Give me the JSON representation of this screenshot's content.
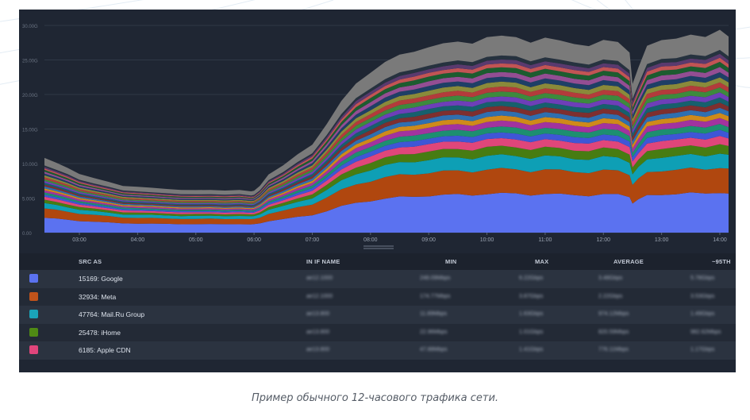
{
  "caption": "Пример обычного 12-часового трафика сети.",
  "chart_data": {
    "type": "area",
    "stacked": true,
    "x_ticks": [
      "03:00",
      "04:00",
      "05:00",
      "06:00",
      "07:00",
      "08:00",
      "09:00",
      "10:00",
      "11:00",
      "12:00",
      "13:00",
      "14:00"
    ],
    "y_ticks": [
      "0.00",
      "5.00G",
      "10.00G",
      "15.00G",
      "20.00G",
      "25.00G",
      "30.00G"
    ],
    "ylim": [
      0,
      30
    ],
    "y_unit": "Gbps",
    "x_start_hour": 2.4,
    "x": [
      2.4,
      2.6,
      2.8,
      3.0,
      3.25,
      3.5,
      3.75,
      4.0,
      4.25,
      4.5,
      4.75,
      5.0,
      5.25,
      5.5,
      5.75,
      5.95,
      6.0,
      6.1,
      6.25,
      6.5,
      6.75,
      7.0,
      7.25,
      7.5,
      7.75,
      8.0,
      8.25,
      8.5,
      8.75,
      9.0,
      9.25,
      9.5,
      9.75,
      10.0,
      10.25,
      10.5,
      10.75,
      11.0,
      11.25,
      11.5,
      11.75,
      12.0,
      12.25,
      12.45,
      12.5,
      12.6,
      12.75,
      13.0,
      13.25,
      13.5,
      13.75,
      14.0,
      14.15
    ],
    "total": [
      10.7,
      10.0,
      9.4,
      8.5,
      7.8,
      7.3,
      6.8,
      6.6,
      6.4,
      6.3,
      6.2,
      6.1,
      6.1,
      6.1,
      6.2,
      5.9,
      6.0,
      6.8,
      8.4,
      9.6,
      11.3,
      12.8,
      15.6,
      18.8,
      21.6,
      23.2,
      24.4,
      25.5,
      26.3,
      26.8,
      27.0,
      27.5,
      27.5,
      28.1,
      28.1,
      28.3,
      27.6,
      27.9,
      27.5,
      27.4,
      27.0,
      27.5,
      27.4,
      26.2,
      21.4,
      23.5,
      27.0,
      28.0,
      27.8,
      28.3,
      28.4,
      29.4,
      28.0
    ],
    "series": [
      {
        "name": "15169: Google",
        "color": "#5b72f0",
        "fraction": 0.2
      },
      {
        "name": "32934: Meta",
        "color": "#b0470f",
        "fraction": 0.125
      },
      {
        "name": "47764: Mail.Ru Group",
        "color": "#0e9fb5",
        "fraction": 0.07
      },
      {
        "name": "25478: iHome",
        "color": "#477c12",
        "fraction": 0.045
      },
      {
        "name": "6185: Apple CDN",
        "color": "#e0467a",
        "fraction": 0.04
      },
      {
        "color": "#3f56d6",
        "fraction": 0.03
      },
      {
        "color": "#1d8f70",
        "fraction": 0.03
      },
      {
        "color": "#a1339f",
        "fraction": 0.03
      },
      {
        "color": "#cf8a1a",
        "fraction": 0.025
      },
      {
        "color": "#2f6fb0",
        "fraction": 0.025
      },
      {
        "color": "#7e2f2f",
        "fraction": 0.025
      },
      {
        "color": "#16606d",
        "fraction": 0.025
      },
      {
        "color": "#6d3fb8",
        "fraction": 0.025
      },
      {
        "color": "#3d8a3d",
        "fraction": 0.025
      },
      {
        "color": "#b33b3b",
        "fraction": 0.025
      },
      {
        "color": "#8a8a3a",
        "fraction": 0.025
      },
      {
        "color": "#1e3f66",
        "fraction": 0.025
      },
      {
        "color": "#934e93",
        "fraction": 0.025
      },
      {
        "color": "#1c5c2f",
        "fraction": 0.025
      },
      {
        "color": "#c25454",
        "fraction": 0.02
      },
      {
        "color": "#5a3a6e",
        "fraction": 0.02
      },
      {
        "color": "#26323f",
        "fraction": 0.02
      },
      {
        "color": "#7a7a7a",
        "fraction": 0.1
      }
    ]
  },
  "table": {
    "headers": {
      "src_as": "SRC AS",
      "in_if": "IN IF NAME",
      "min": "MIN",
      "max": "MAX",
      "average": "AVERAGE",
      "p95": "~95TH"
    },
    "rows": [
      {
        "color": "#5b72f0",
        "label": "15169: Google",
        "in_if": "ae12.1000",
        "min": "248.09Mbps",
        "max": "6.22Gbps",
        "avg": "3.48Gbps",
        "p95": "5.78Gbps"
      },
      {
        "color": "#c0531b",
        "label": "32934: Meta",
        "in_if": "ae12.1000",
        "min": "174.77Mbps",
        "max": "3.87Gbps",
        "avg": "2.22Gbps",
        "p95": "3.53Gbps"
      },
      {
        "color": "#1aa3b8",
        "label": "47764: Mail.Ru Group",
        "in_if": "ae13.800",
        "min": "11.89Mbps",
        "max": "1.63Gbps",
        "avg": "974.12Mbps",
        "p95": "1.49Gbps"
      },
      {
        "color": "#4f8a14",
        "label": "25478: iHome",
        "in_if": "ae13.800",
        "min": "22.96Mbps",
        "max": "1.01Gbps",
        "avg": "820.59Mbps",
        "p95": "982.62Mbps"
      },
      {
        "color": "#e0457b",
        "label": "6185: Apple CDN",
        "in_if": "ae13.800",
        "min": "47.88Mbps",
        "max": "1.41Gbps",
        "avg": "776.11Mbps",
        "p95": "1.17Gbps"
      }
    ]
  }
}
